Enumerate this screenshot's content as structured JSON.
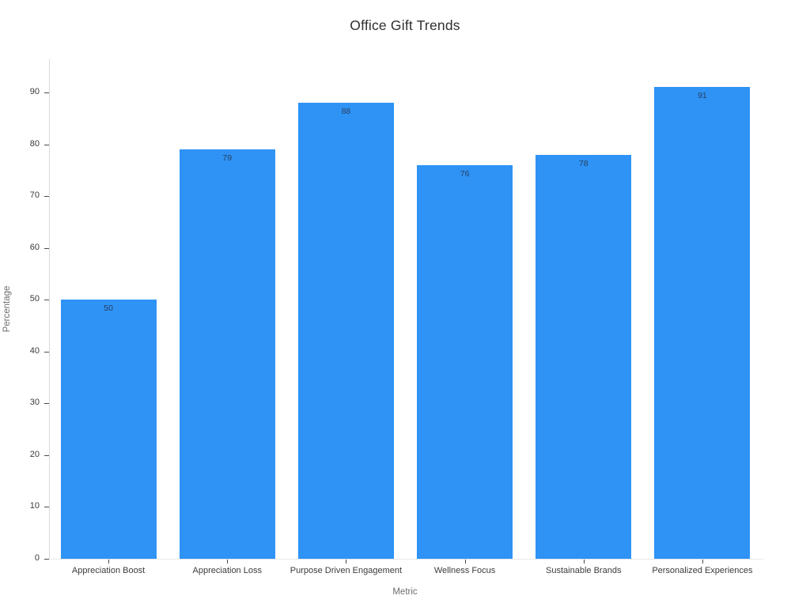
{
  "title": "Office Gift Trends",
  "chart_data": {
    "type": "bar",
    "title": "Office Gift Trends",
    "xlabel": "Metric",
    "ylabel": "Percentage",
    "categories": [
      "Appreciation Boost",
      "Appreciation Loss",
      "Purpose Driven Engagement",
      "Wellness Focus",
      "Sustainable Brands",
      "Personalized Experiences"
    ],
    "values": [
      50,
      79,
      88,
      76,
      78,
      91
    ],
    "yticks": [
      0,
      10,
      20,
      30,
      40,
      50,
      60,
      70,
      80,
      90
    ],
    "ylim": [
      0,
      96
    ],
    "grid": false,
    "legend": "none",
    "bar_value_labels_inside": true,
    "colors": {
      "bar": "#2e93f5",
      "bar_label": "#2a3f5f",
      "tick_label": "#3b3b3b",
      "axis_title": "#6e6e6e",
      "title": "#2f2f2f",
      "spine": "#d9d9d9",
      "baseline": "#e8e8e8",
      "background": "#ffffff"
    }
  }
}
